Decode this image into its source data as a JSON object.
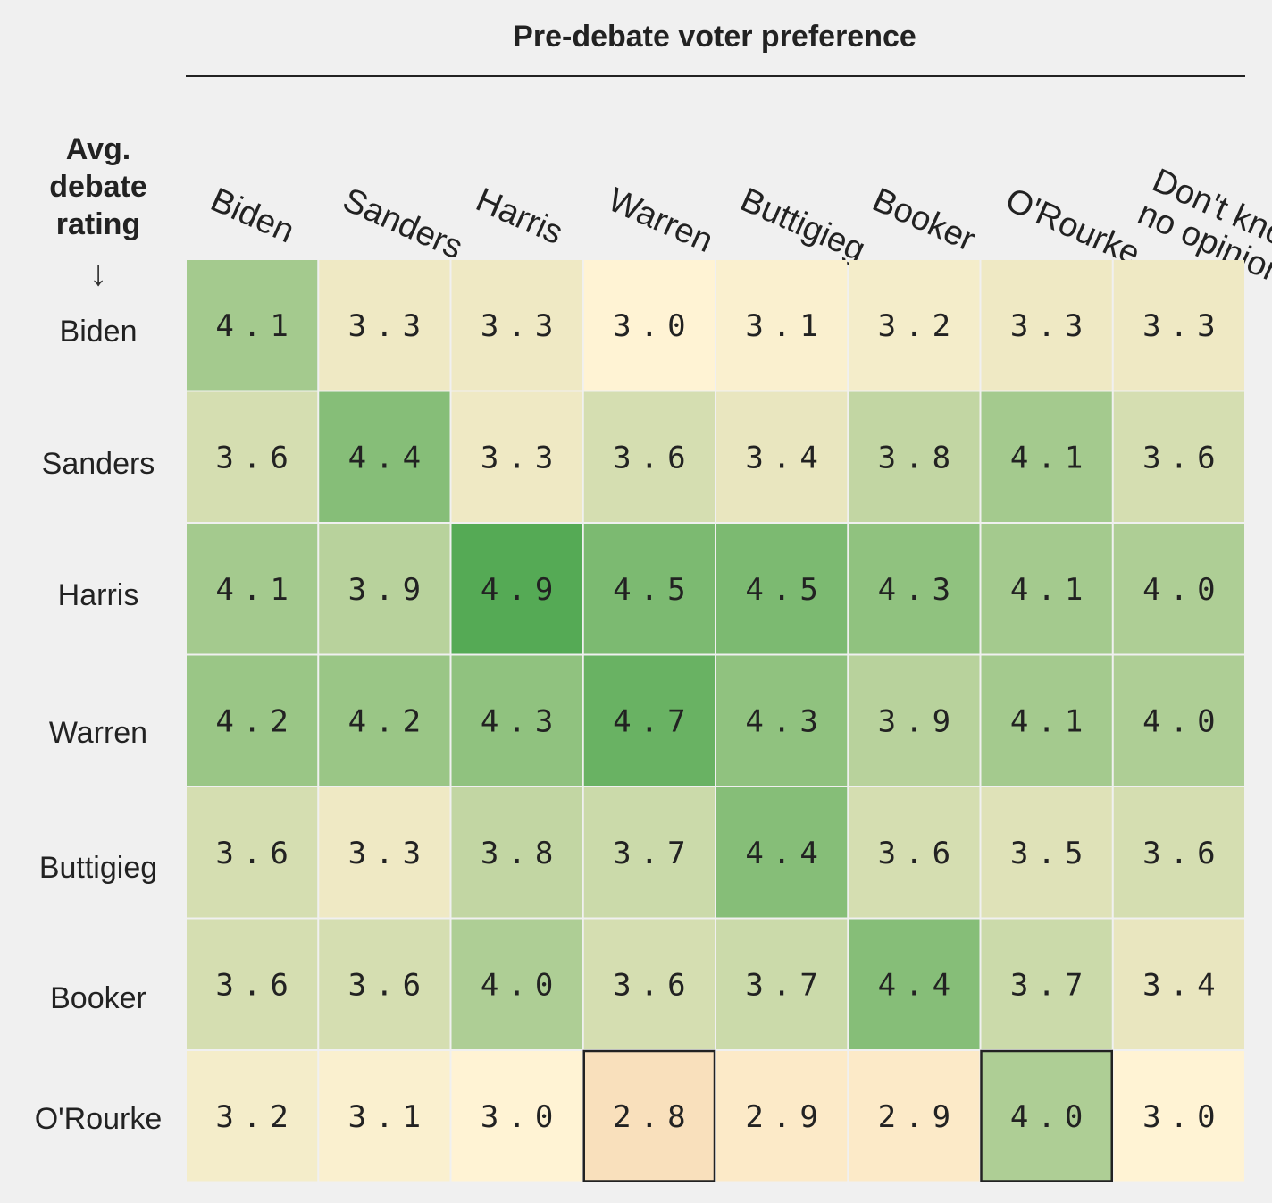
{
  "chart_data": {
    "type": "heatmap",
    "title": "Pre-debate voter preference",
    "row_axis_label": "Avg. debate rating",
    "arrow": "↓",
    "columns": [
      "Biden",
      "Sanders",
      "Harris",
      "Warren",
      "Buttigieg",
      "Booker",
      "O'Rourke",
      "Don't know/\nno opinion"
    ],
    "rows": [
      "Biden",
      "Sanders",
      "Harris",
      "Warren",
      "Buttigieg",
      "Booker",
      "O'Rourke"
    ],
    "values": [
      [
        4.1,
        3.3,
        3.3,
        3.0,
        3.1,
        3.2,
        3.3,
        3.3
      ],
      [
        3.6,
        4.4,
        3.3,
        3.6,
        3.4,
        3.8,
        4.1,
        3.6
      ],
      [
        4.1,
        3.9,
        4.9,
        4.5,
        4.5,
        4.3,
        4.1,
        4.0
      ],
      [
        4.2,
        4.2,
        4.3,
        4.7,
        4.3,
        3.9,
        4.1,
        4.0
      ],
      [
        3.6,
        3.3,
        3.8,
        3.7,
        4.4,
        3.6,
        3.5,
        3.6
      ],
      [
        3.6,
        3.6,
        4.0,
        3.6,
        3.7,
        4.4,
        3.7,
        3.4
      ],
      [
        3.2,
        3.1,
        3.0,
        2.8,
        2.9,
        2.9,
        4.0,
        3.0
      ]
    ],
    "highlighted_cells": [
      [
        6,
        3
      ],
      [
        6,
        6
      ]
    ],
    "color_scale": {
      "low": "#f9e0bc",
      "mid": "#fff3d4",
      "high": "#55aa55"
    }
  }
}
